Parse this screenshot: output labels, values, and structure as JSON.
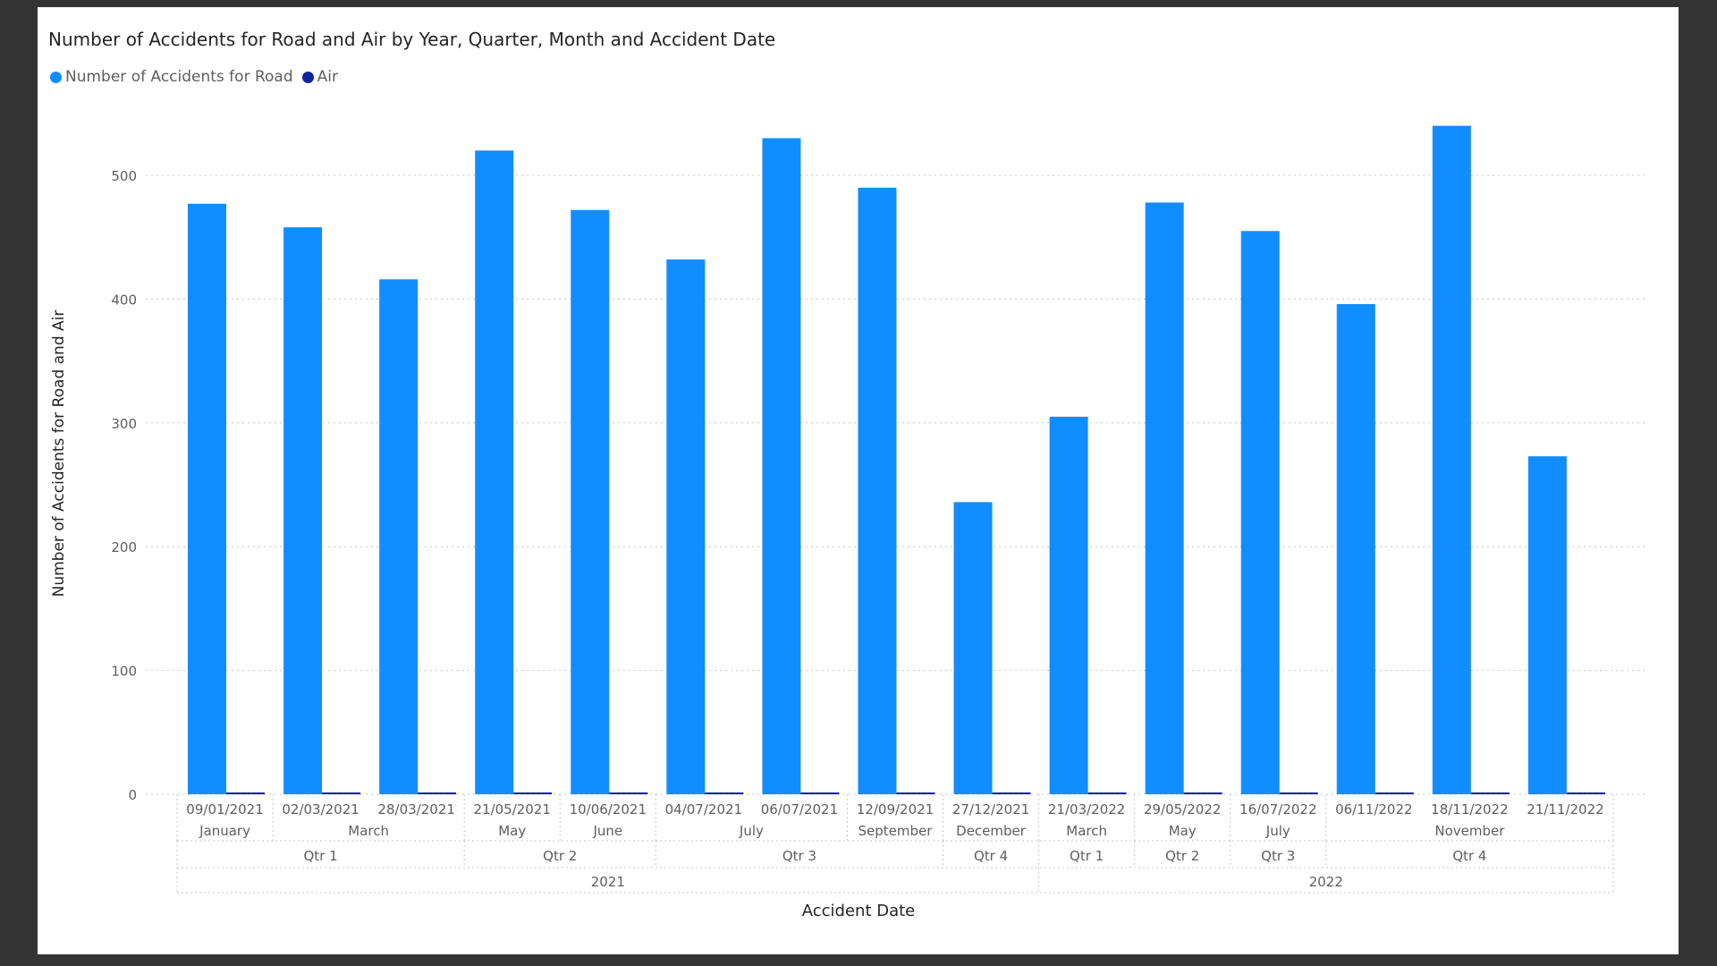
{
  "chart_data": {
    "type": "bar",
    "title": "Number of Accidents for Road and Air by Year, Quarter, Month and Accident Date",
    "xlabel": "Accident Date",
    "ylabel": "Number of Accidents for Road and Air",
    "ylim": [
      0,
      550
    ],
    "yticks": [
      0,
      100,
      200,
      300,
      400,
      500
    ],
    "grid": true,
    "legend_position": "top-left",
    "categories": [
      "09/01/2021",
      "02/03/2021",
      "28/03/2021",
      "21/05/2021",
      "10/06/2021",
      "04/07/2021",
      "06/07/2021",
      "12/09/2021",
      "27/12/2021",
      "21/03/2022",
      "29/05/2022",
      "16/07/2022",
      "06/11/2022",
      "18/11/2022",
      "21/11/2022"
    ],
    "series": [
      {
        "name": "Number of Accidents for Road",
        "color": "#118dff",
        "values": [
          477,
          458,
          416,
          520,
          472,
          432,
          530,
          490,
          236,
          305,
          478,
          455,
          396,
          540,
          273
        ]
      },
      {
        "name": "Air",
        "color": "#12239e",
        "values": [
          1,
          1,
          1,
          1,
          1,
          1,
          1,
          1,
          1,
          1,
          1,
          1,
          1,
          1,
          1
        ]
      }
    ],
    "hierarchy": {
      "months": [
        {
          "label": "January",
          "count": 1
        },
        {
          "label": "March",
          "count": 2
        },
        {
          "label": "May",
          "count": 1
        },
        {
          "label": "June",
          "count": 1
        },
        {
          "label": "July",
          "count": 2
        },
        {
          "label": "September",
          "count": 1
        },
        {
          "label": "December",
          "count": 1
        },
        {
          "label": "March",
          "count": 1
        },
        {
          "label": "May",
          "count": 1
        },
        {
          "label": "July",
          "count": 1
        },
        {
          "label": "November",
          "count": 3
        }
      ],
      "quarters": [
        {
          "label": "Qtr 1",
          "count": 3
        },
        {
          "label": "Qtr 2",
          "count": 2
        },
        {
          "label": "Qtr 3",
          "count": 3
        },
        {
          "label": "Qtr 4",
          "count": 1
        },
        {
          "label": "Qtr 1",
          "count": 1
        },
        {
          "label": "Qtr 2",
          "count": 1
        },
        {
          "label": "Qtr 3",
          "count": 1
        },
        {
          "label": "Qtr 4",
          "count": 3
        }
      ],
      "years": [
        {
          "label": "2021",
          "count": 9
        },
        {
          "label": "2022",
          "count": 6
        }
      ]
    }
  }
}
